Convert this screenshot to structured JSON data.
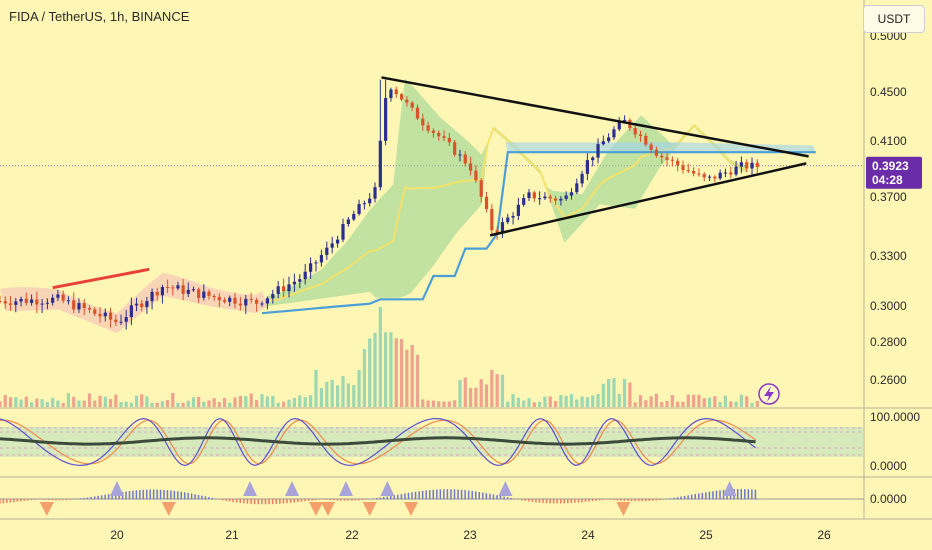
{
  "header": {
    "title": "FIDA / TetherUS, 1h, BINANCE",
    "currency": "USDT"
  },
  "price_tag": {
    "price": "0.3923",
    "countdown": "04:28"
  },
  "colors": {
    "background": "#fdf6b4",
    "up": "#9be5cf",
    "down": "#d9532a",
    "candle_up": "#2b2e8f",
    "cloud_blue": "#4a9fd8",
    "cloud_green": "#8fd28f",
    "price_tag": "#6a2ca8",
    "wedge": "#111111",
    "trend_red": "#e8413a"
  },
  "chart_data": [
    {
      "type": "line",
      "title": "FIDA / TetherUS, 1h, BINANCE",
      "x_ticks": [
        "20",
        "21",
        "22",
        "23",
        "24",
        "25",
        "26"
      ],
      "y_ticks": [
        "0.2600",
        "0.2800",
        "0.3000",
        "0.3300",
        "0.3700",
        "0.4100",
        "0.4500",
        "0.5000"
      ],
      "ylim": [
        0.249,
        0.502
      ],
      "series": [
        {
          "name": "",
          "x": [
            19.0,
            19.5,
            20.0,
            20.4,
            20.8,
            21.2,
            21.6,
            21.8,
            22.0,
            22.2,
            22.3,
            22.6,
            23.0,
            23.2,
            23.5,
            23.8,
            24.0,
            24.3,
            24.6,
            25.0,
            25.3,
            25.5
          ],
          "values": [
            0.303,
            0.304,
            0.291,
            0.312,
            0.306,
            0.302,
            0.318,
            0.335,
            0.357,
            0.375,
            0.458,
            0.425,
            0.392,
            0.345,
            0.371,
            0.368,
            0.396,
            0.427,
            0.4,
            0.382,
            0.392,
            0.392
          ]
        }
      ],
      "annotations": [
        "wedge upper trendline",
        "wedge lower trendline",
        "red resistance line",
        "ichimoku cloud",
        "volume bars"
      ],
      "grid": false
    },
    {
      "type": "line",
      "title": "",
      "y_ticks": [
        "100.0000",
        "0.0000"
      ],
      "ylim": [
        0,
        100
      ]
    },
    {
      "type": "bar",
      "title": "",
      "y_ticks": [
        "0.0000"
      ]
    }
  ]
}
